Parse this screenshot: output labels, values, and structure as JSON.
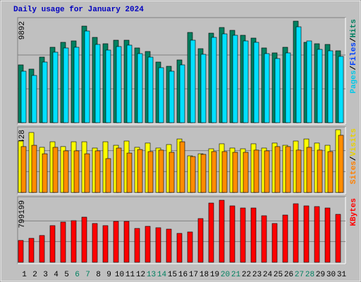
{
  "title": "Daily usage for January 2024",
  "chart_data": [
    {
      "type": "bar",
      "ylim": [
        0,
        9892
      ],
      "yticks": [
        9892
      ],
      "legend": [
        {
          "text": "Pages",
          "color": "#00c8e8"
        },
        {
          "text": "/",
          "color": "#000000"
        },
        {
          "text": "Files",
          "color": "#0040ff"
        },
        {
          "text": "/",
          "color": "#000000"
        },
        {
          "text": "Hits",
          "color": "#008060"
        }
      ],
      "series": [
        {
          "color": "#008060",
          "values": [
            5633,
            5221,
            6389,
            7350,
            7831,
            7969,
            9411,
            8312,
            7694,
            8037,
            8037,
            7282,
            6938,
            5908,
            5496,
            6114,
            8793,
            7213,
            8724,
            9274,
            8999,
            8518,
            8243,
            7282,
            6801,
            7350,
            9892,
            7831,
            7694,
            7625,
            7007
          ]
        },
        {
          "color": "#00e0ff",
          "values": [
            5015,
            4602,
            5907,
            6869,
            7281,
            7350,
            8930,
            7625,
            7075,
            7419,
            7556,
            6732,
            6388,
            5358,
            5015,
            5633,
            8037,
            6663,
            8312,
            8655,
            8518,
            7968,
            7831,
            6732,
            6251,
            6800,
            9342,
            7968,
            7144,
            7006,
            6457
          ]
        }
      ]
    },
    {
      "type": "bar",
      "ylim": [
        0,
        428
      ],
      "yticks": [
        428
      ],
      "legend": [
        {
          "text": "Sites",
          "color": "#ff8000"
        },
        {
          "text": "/",
          "color": "#000000"
        },
        {
          "text": "Visits",
          "color": "#e8d000"
        }
      ],
      "series": [
        {
          "color": "#ffff00",
          "values": [
            351,
            409,
            308,
            346,
            313,
            346,
            346,
            303,
            346,
            322,
            351,
            308,
            337,
            303,
            327,
            365,
            250,
            264,
            298,
            332,
            303,
            298,
            332,
            303,
            337,
            322,
            351,
            365,
            337,
            322,
            428
          ]
        },
        {
          "color": "#ff8c00",
          "values": [
            313,
            322,
            264,
            308,
            284,
            284,
            264,
            284,
            231,
            303,
            269,
            293,
            279,
            289,
            274,
            346,
            245,
            260,
            279,
            279,
            274,
            274,
            289,
            284,
            313,
            313,
            289,
            308,
            289,
            279,
            390
          ]
        }
      ]
    },
    {
      "type": "bar",
      "ylim": [
        0,
        799199
      ],
      "yticks": [
        799199
      ],
      "legend": [
        {
          "text": "KBytes",
          "color": "#ff0000"
        }
      ],
      "categories": [
        "1",
        "2",
        "3",
        "4",
        "5",
        "6",
        "7",
        "8",
        "9",
        "10",
        "11",
        "12",
        "13",
        "14",
        "15",
        "16",
        "17",
        "18",
        "19",
        "20",
        "21",
        "22",
        "23",
        "24",
        "25",
        "26",
        "27",
        "28",
        "29",
        "30",
        "31"
      ],
      "category_colors": [
        "#000000",
        "#000000",
        "#000000",
        "#000000",
        "#000000",
        "#008060",
        "#008060",
        "#000000",
        "#000000",
        "#000000",
        "#000000",
        "#000000",
        "#008060",
        "#008060",
        "#000000",
        "#000000",
        "#000000",
        "#000000",
        "#000000",
        "#008060",
        "#008060",
        "#000000",
        "#000000",
        "#000000",
        "#000000",
        "#000000",
        "#008060",
        "#008060",
        "#000000",
        "#000000",
        "#000000"
      ],
      "series": [
        {
          "color": "#ff0000",
          "values": [
            281542,
            308788,
            345116,
            472264,
            517674,
            535838,
            581248,
            499510,
            472264,
            526756,
            526756,
            435936,
            463182,
            445018,
            426854,
            372362,
            390526,
            563084,
            762888,
            799199,
            726560,
            699314,
            699314,
            599412,
            499510,
            608494,
            753806,
            726560,
            717478,
            699314,
            617576
          ]
        }
      ]
    }
  ]
}
